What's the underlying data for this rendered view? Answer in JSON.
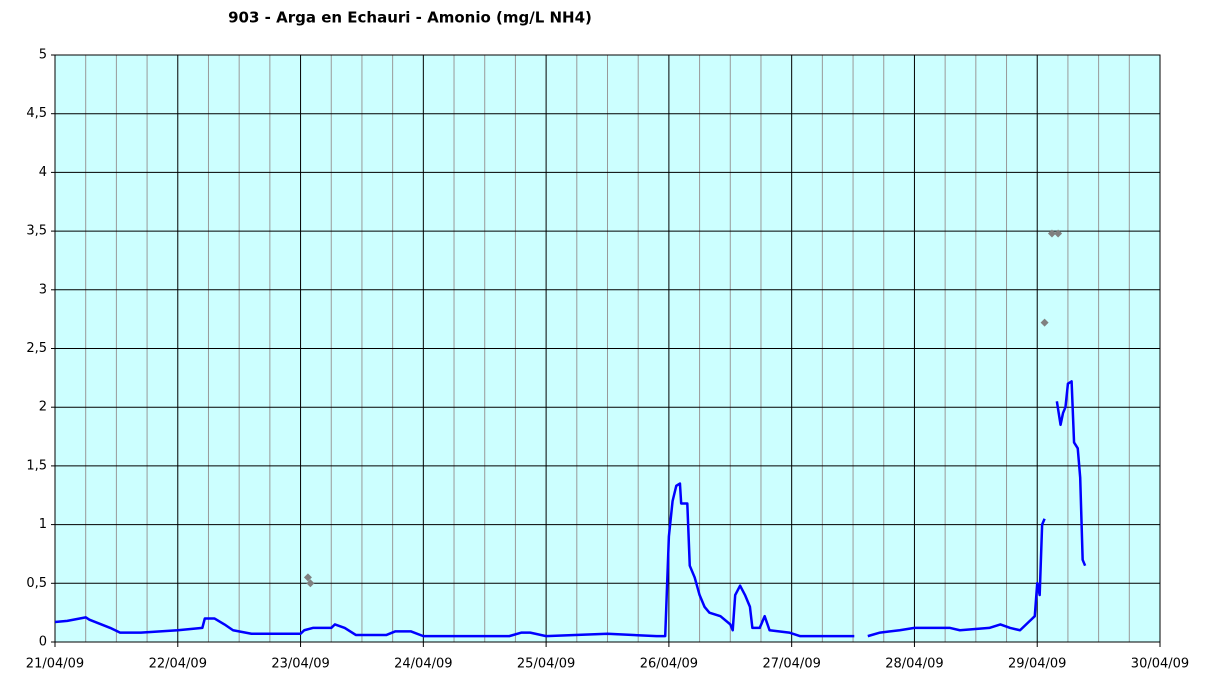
{
  "chart_data": {
    "type": "line",
    "title": "903 - Arga en Echauri - Amonio (mg/L NH4)",
    "xlim": [
      0,
      9
    ],
    "xticks": [
      {
        "value": 0,
        "label": "21/04/09"
      },
      {
        "value": 1,
        "label": "22/04/09"
      },
      {
        "value": 2,
        "label": "23/04/09"
      },
      {
        "value": 3,
        "label": "24/04/09"
      },
      {
        "value": 4,
        "label": "25/04/09"
      },
      {
        "value": 5,
        "label": "26/04/09"
      },
      {
        "value": 6,
        "label": "27/04/09"
      },
      {
        "value": 7,
        "label": "28/04/09"
      },
      {
        "value": 8,
        "label": "29/04/09"
      },
      {
        "value": 9,
        "label": "30/04/09"
      }
    ],
    "ylim": [
      0,
      5
    ],
    "yticks": [
      0,
      {
        "value": 0.5,
        "label": "0,5"
      },
      1,
      {
        "value": 1.5,
        "label": "1,5"
      },
      2,
      {
        "value": 2.5,
        "label": "2,5"
      },
      3,
      {
        "value": 3.5,
        "label": "3,5"
      },
      4,
      {
        "value": 4.5,
        "label": "4,5"
      },
      5
    ],
    "grid": true,
    "background": "#ccffff",
    "series": [
      {
        "color": "#0000ff",
        "style": "line",
        "x": [
          0,
          0.1,
          0.25,
          0.28,
          0.45,
          0.53,
          0.7,
          1.0,
          1.2,
          1.22,
          1.3,
          1.38,
          1.45,
          1.6,
          2.0,
          2.03,
          2.1,
          2.25,
          2.28,
          2.36,
          2.45,
          2.7,
          2.77,
          2.9,
          3.0,
          3.7,
          3.8,
          3.87,
          4.0,
          4.5,
          4.9,
          4.97,
          5.0,
          5.03,
          5.06,
          5.09,
          5.1,
          5.15,
          5.17,
          5.21,
          5.25,
          5.29,
          5.33,
          5.42,
          5.5,
          5.52,
          5.54,
          5.58,
          5.62,
          5.66,
          5.68,
          5.74,
          5.78,
          5.82,
          5.98,
          6.07,
          6.51,
          6.56,
          6.62,
          6.72,
          6.88,
          7.0,
          7.29,
          7.37,
          7.61,
          7.7,
          7.78,
          7.86,
          7.94,
          7.98,
          8.0,
          8.02,
          8.04,
          8.06,
          8.11,
          8.16,
          8.19,
          8.21,
          8.23,
          8.25,
          8.28,
          8.3,
          8.33,
          8.35,
          8.37,
          8.39
        ],
        "values": [
          0.17,
          0.18,
          0.21,
          0.19,
          0.12,
          0.08,
          0.08,
          0.1,
          0.12,
          0.2,
          0.2,
          0.15,
          0.1,
          0.07,
          0.07,
          0.1,
          0.12,
          0.12,
          0.15,
          0.12,
          0.06,
          0.06,
          0.09,
          0.09,
          0.05,
          0.05,
          0.08,
          0.08,
          0.05,
          0.07,
          0.05,
          0.05,
          0.9,
          1.2,
          1.33,
          1.35,
          1.18,
          1.18,
          0.65,
          0.55,
          0.4,
          0.3,
          0.25,
          0.22,
          0.15,
          0.1,
          0.4,
          0.48,
          0.4,
          0.3,
          0.12,
          0.12,
          0.22,
          0.1,
          0.08,
          0.05,
          0.05,
          null,
          0.05,
          0.08,
          0.1,
          0.12,
          0.12,
          0.1,
          0.12,
          0.15,
          0.12,
          0.1,
          0.18,
          0.22,
          0.5,
          0.4,
          1.0,
          1.05,
          null,
          2.05,
          1.85,
          1.95,
          2.0,
          2.2,
          2.22,
          1.7,
          1.65,
          1.4,
          0.7,
          0.65
        ]
      },
      {
        "color": "#808080",
        "style": "marker",
        "x": [
          2.06,
          2.08,
          8.06,
          8.12,
          8.17
        ],
        "values": [
          0.55,
          0.5,
          2.72,
          3.48,
          3.48
        ]
      }
    ]
  }
}
